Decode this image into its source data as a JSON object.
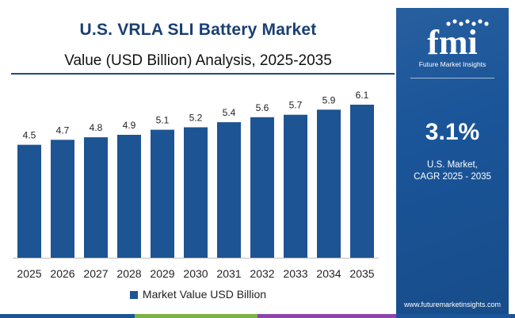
{
  "title": "U.S. VRLA SLI Battery Market",
  "subtitle": "Value (USD Billion) Analysis, 2025-2035",
  "legend_label": "Market Value USD Billion",
  "colors": {
    "bar": "#1d5493",
    "title": "#1a3f73",
    "panel": "#1a5599",
    "strip": [
      "#1a5599",
      "#7cb342",
      "#8e44ad",
      "#1a5599"
    ]
  },
  "chart_data": {
    "type": "bar",
    "title": "U.S. VRLA SLI Battery Market",
    "subtitle": "Value (USD Billion) Analysis, 2025-2035",
    "xlabel": "",
    "ylabel": "",
    "grid": false,
    "legend": "bottom",
    "categories": [
      "2025",
      "2026",
      "2027",
      "2028",
      "2029",
      "2030",
      "2031",
      "2032",
      "2033",
      "2034",
      "2035"
    ],
    "series": [
      {
        "name": "Market Value USD Billion",
        "values": [
          4.5,
          4.7,
          4.8,
          4.9,
          5.1,
          5.2,
          5.4,
          5.6,
          5.7,
          5.9,
          6.1
        ],
        "labels": [
          "4.5",
          "4.7",
          "4.8",
          "4.9",
          "5.1",
          "5.2",
          "5.4",
          "5.6",
          "5.7",
          "5.9",
          "6.1"
        ]
      }
    ],
    "ylim": [
      0,
      6.1
    ]
  },
  "side_panel": {
    "logo_text": "fmi",
    "logo_tagline": "Future Market Insights",
    "logo_icon": "fmi-dots-logo-icon",
    "cagr_value": "3.1%",
    "cagr_line1": "U.S. Market,",
    "cagr_line2": "CAGR 2025 - 2035",
    "website": "www.futuremarketinsights.com"
  }
}
